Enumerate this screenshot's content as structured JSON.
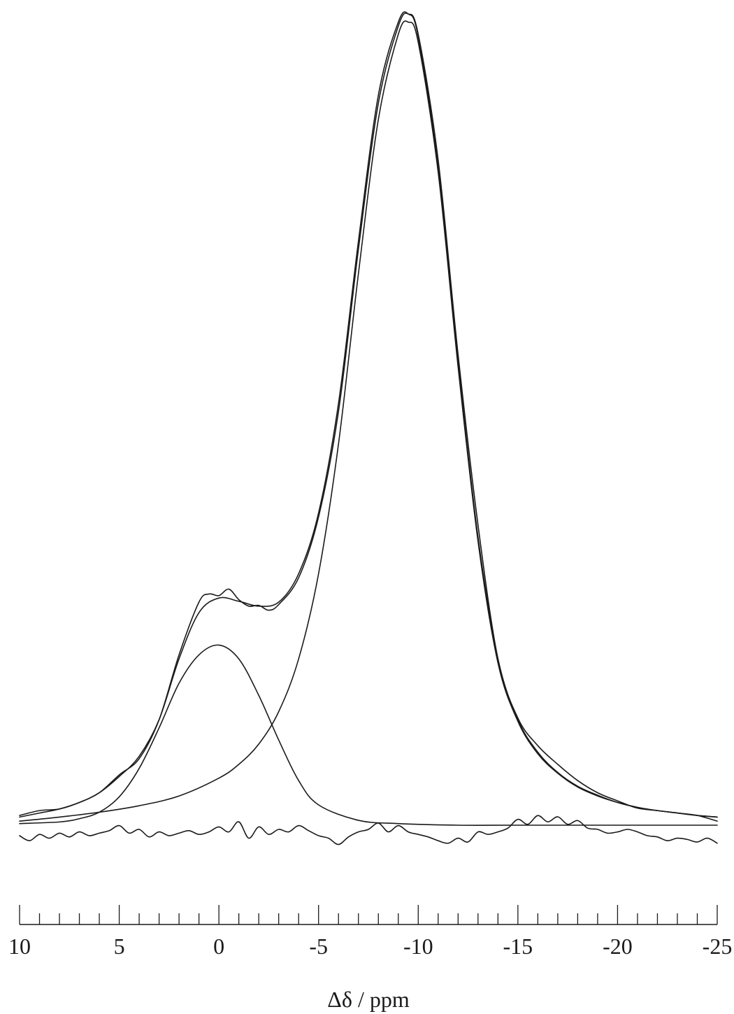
{
  "chart_data": {
    "type": "line",
    "title": "",
    "xlabel": "Δδ / ppm",
    "ylabel": "",
    "xlim": [
      10,
      -25
    ],
    "x_reversed": true,
    "x_ticks_major": [
      10,
      5,
      0,
      -5,
      -10,
      -15,
      -20,
      -25
    ],
    "x_tick_labels": [
      "10",
      "5",
      "0",
      "-5",
      "-10",
      "-15",
      "-20",
      "-25"
    ],
    "x_minor_tick_step": 1,
    "y_visible": false,
    "grid": false,
    "legend": "none",
    "series": [
      {
        "role": "experimental",
        "x": [
          10,
          9,
          8,
          7,
          6,
          5,
          4,
          3,
          2,
          1,
          0.5,
          0,
          -0.5,
          -1,
          -1.5,
          -2,
          -2.5,
          -3,
          -4,
          -5,
          -6,
          -7,
          -8,
          -9,
          -9.5,
          -10,
          -11,
          -12,
          -13,
          -14,
          -15,
          -16,
          -17,
          -18,
          -19,
          -20,
          -21,
          -22,
          -23,
          -24,
          -25
        ],
        "y": [
          0.012,
          0.018,
          0.02,
          0.028,
          0.04,
          0.062,
          0.082,
          0.13,
          0.21,
          0.275,
          0.285,
          0.283,
          0.291,
          0.278,
          0.27,
          0.271,
          0.265,
          0.272,
          0.305,
          0.38,
          0.51,
          0.71,
          0.89,
          0.985,
          1.0,
          0.975,
          0.82,
          0.58,
          0.37,
          0.205,
          0.132,
          0.098,
          0.075,
          0.055,
          0.04,
          0.03,
          0.021,
          0.018,
          0.015,
          0.012,
          0.005
        ]
      },
      {
        "role": "fit-sum",
        "x": [
          10,
          9,
          8,
          7,
          6,
          5,
          4,
          3,
          2,
          1,
          0,
          -1,
          -2,
          -3,
          -4,
          -5,
          -6,
          -7,
          -8,
          -9,
          -9.5,
          -10,
          -11,
          -12,
          -13,
          -14,
          -15,
          -16,
          -17,
          -18,
          -19,
          -20,
          -21,
          -22,
          -23,
          -24,
          -25
        ],
        "y": [
          0.01,
          0.015,
          0.02,
          0.028,
          0.04,
          0.06,
          0.085,
          0.13,
          0.205,
          0.262,
          0.28,
          0.276,
          0.27,
          0.275,
          0.31,
          0.385,
          0.52,
          0.72,
          0.9,
          0.99,
          1.0,
          0.972,
          0.81,
          0.57,
          0.355,
          0.205,
          0.13,
          0.09,
          0.065,
          0.048,
          0.037,
          0.028,
          0.022,
          0.018,
          0.015,
          0.012,
          0.01
        ]
      },
      {
        "role": "fit-component-main",
        "x": [
          10,
          8,
          6,
          4,
          2,
          0,
          -1,
          -2,
          -3,
          -4,
          -5,
          -6,
          -7,
          -8,
          -9,
          -9.5,
          -10,
          -11,
          -12,
          -13,
          -14,
          -15,
          -16,
          -17,
          -18,
          -19,
          -20,
          -21,
          -22,
          -23,
          -24,
          -25
        ],
        "y": [
          0.005,
          0.01,
          0.016,
          0.024,
          0.036,
          0.058,
          0.075,
          0.1,
          0.14,
          0.205,
          0.31,
          0.47,
          0.68,
          0.87,
          0.975,
          0.99,
          0.965,
          0.805,
          0.565,
          0.35,
          0.2,
          0.128,
          0.088,
          0.064,
          0.047,
          0.036,
          0.028,
          0.022,
          0.018,
          0.015,
          0.012,
          0.01
        ]
      },
      {
        "role": "fit-component-minor",
        "x": [
          10,
          8,
          7,
          6,
          5,
          4,
          3,
          2,
          1,
          0,
          -1,
          -2,
          -3,
          -4,
          -5,
          -7,
          -9,
          -12,
          -15,
          -20,
          -25
        ],
        "y": [
          0.002,
          0.004,
          0.008,
          0.016,
          0.035,
          0.07,
          0.12,
          0.175,
          0.21,
          0.222,
          0.205,
          0.16,
          0.105,
          0.055,
          0.025,
          0.006,
          0.002,
          0.0,
          0.0,
          0.0,
          0.0
        ]
      },
      {
        "role": "residual",
        "x": [
          10,
          9.5,
          9,
          8.5,
          8,
          7.5,
          7,
          6.5,
          6,
          5.5,
          5,
          4.5,
          4,
          3.5,
          3,
          2.5,
          2,
          1.5,
          1,
          0.5,
          0,
          -0.5,
          -1,
          -1.5,
          -2,
          -2.5,
          -3,
          -3.5,
          -4,
          -4.5,
          -5,
          -5.5,
          -6,
          -6.5,
          -7,
          -7.5,
          -8,
          -8.5,
          -9,
          -9.5,
          -10,
          -10.5,
          -11,
          -11.5,
          -12,
          -12.5,
          -13,
          -13.5,
          -14,
          -14.5,
          -15,
          -15.5,
          -16,
          -16.5,
          -17,
          -17.5,
          -18,
          -18.5,
          -19,
          -19.5,
          -20,
          -20.5,
          -21,
          -21.5,
          -22,
          -22.5,
          -23,
          -23.5,
          -24,
          -24.5,
          -25
        ],
        "y": [
          -0.01,
          -0.018,
          -0.008,
          -0.014,
          -0.006,
          -0.012,
          -0.004,
          -0.01,
          -0.006,
          -0.002,
          0.006,
          -0.006,
          0.0,
          -0.012,
          -0.004,
          -0.01,
          -0.006,
          -0.002,
          -0.008,
          -0.004,
          0.004,
          -0.004,
          0.012,
          -0.014,
          0.004,
          -0.008,
          0.0,
          -0.004,
          0.006,
          -0.002,
          -0.01,
          -0.014,
          -0.024,
          -0.012,
          -0.004,
          0.0,
          0.01,
          -0.004,
          0.006,
          -0.004,
          -0.008,
          -0.012,
          -0.018,
          -0.022,
          -0.014,
          -0.02,
          -0.004,
          -0.008,
          -0.004,
          0.002,
          0.016,
          0.008,
          0.022,
          0.012,
          0.02,
          0.008,
          0.014,
          0.002,
          0.0,
          -0.006,
          -0.004,
          0.0,
          -0.004,
          -0.01,
          -0.012,
          -0.018,
          -0.014,
          -0.016,
          -0.02,
          -0.014,
          -0.022
        ]
      }
    ]
  }
}
